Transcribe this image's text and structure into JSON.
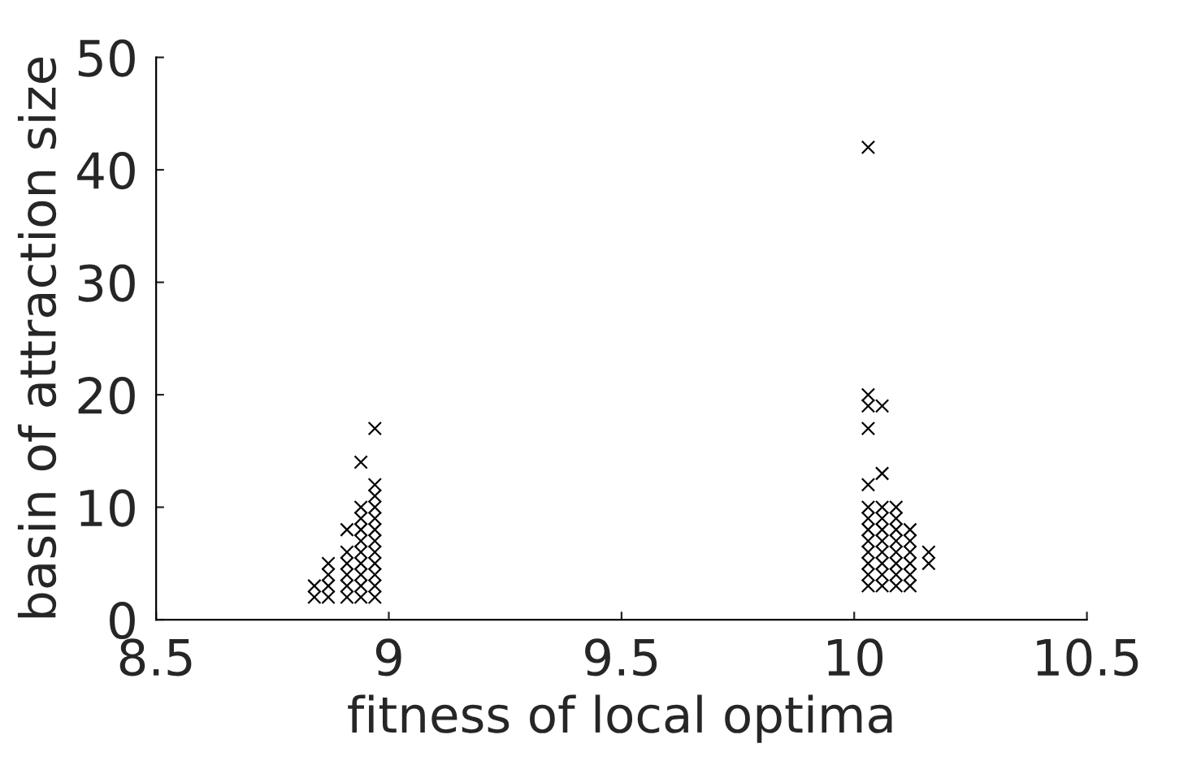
{
  "chart_data": {
    "type": "scatter",
    "xlabel": "fitness of local optima",
    "ylabel": "basin of attraction size",
    "xlim": [
      8.5,
      10.5
    ],
    "xticks": [
      8.5,
      9,
      9.5,
      10,
      10.5
    ],
    "ylim": [
      0,
      50
    ],
    "yticks": [
      0,
      10,
      20,
      30,
      40,
      50
    ],
    "marker": "cross",
    "grid": false,
    "legend": false,
    "series": [
      {
        "color": "#000000",
        "x": [
          8.84,
          8.84,
          8.87,
          8.87,
          8.87,
          8.87,
          8.91,
          8.91,
          8.91,
          8.91,
          8.91,
          8.91,
          8.94,
          8.94,
          8.94,
          8.94,
          8.94,
          8.94,
          8.94,
          8.94,
          8.94,
          8.94,
          8.97,
          8.97,
          8.97,
          8.97,
          8.97,
          8.97,
          8.97,
          8.97,
          8.97,
          8.97,
          8.97,
          8.97,
          10.03,
          10.03,
          10.03,
          10.03,
          10.03,
          10.03,
          10.03,
          10.03,
          10.03,
          10.03,
          10.03,
          10.03,
          10.03,
          10.06,
          10.06,
          10.06,
          10.06,
          10.06,
          10.06,
          10.06,
          10.06,
          10.06,
          10.06,
          10.09,
          10.09,
          10.09,
          10.09,
          10.09,
          10.09,
          10.09,
          10.09,
          10.12,
          10.12,
          10.12,
          10.12,
          10.12,
          10.12,
          10.16,
          10.16
        ],
        "values": [
          2,
          3,
          2,
          3,
          4,
          5,
          2,
          3,
          4,
          5,
          6,
          8,
          2,
          3,
          4,
          5,
          6,
          7,
          8,
          9,
          10,
          14,
          2,
          3,
          4,
          5,
          6,
          7,
          8,
          9,
          10,
          11,
          12,
          17,
          3,
          4,
          5,
          6,
          7,
          8,
          9,
          10,
          12,
          17,
          19,
          20,
          42,
          3,
          4,
          5,
          6,
          7,
          8,
          9,
          10,
          13,
          19,
          3,
          4,
          5,
          6,
          7,
          8,
          9,
          10,
          3,
          4,
          5,
          6,
          7,
          8,
          5,
          6
        ]
      }
    ]
  }
}
